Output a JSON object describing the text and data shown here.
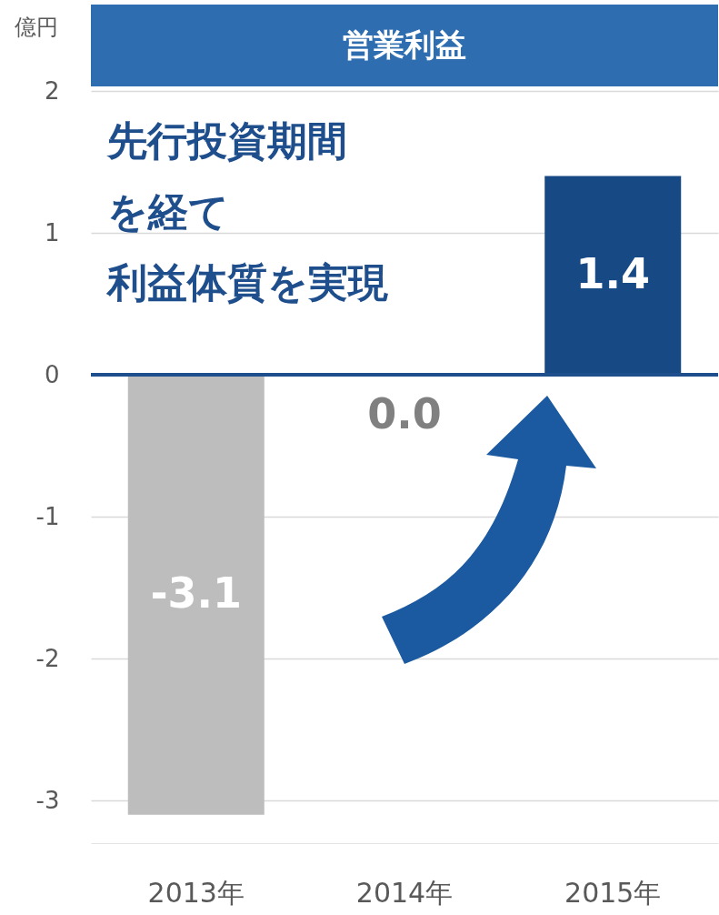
{
  "chart_data": {
    "type": "bar",
    "title": "営業利益",
    "ylabel": "億円",
    "categories": [
      "2013年",
      "2014年",
      "2015年"
    ],
    "values": [
      -3.1,
      0.0,
      1.4
    ],
    "colors": [
      "#bdbdbd",
      "#808080",
      "#174a84"
    ],
    "value_labels": [
      "-3.1",
      "0.0",
      "1.4"
    ],
    "ylim": [
      -3.3,
      2
    ],
    "yticks": [
      -3,
      -2,
      -1,
      0,
      1,
      2
    ],
    "grid": "y",
    "ref_lines": [
      {
        "axis": "y",
        "value": 0,
        "color": "#1f4e8c"
      }
    ],
    "annotations": [
      "先行投資期間",
      "を経て",
      "利益体質を実現"
    ]
  }
}
